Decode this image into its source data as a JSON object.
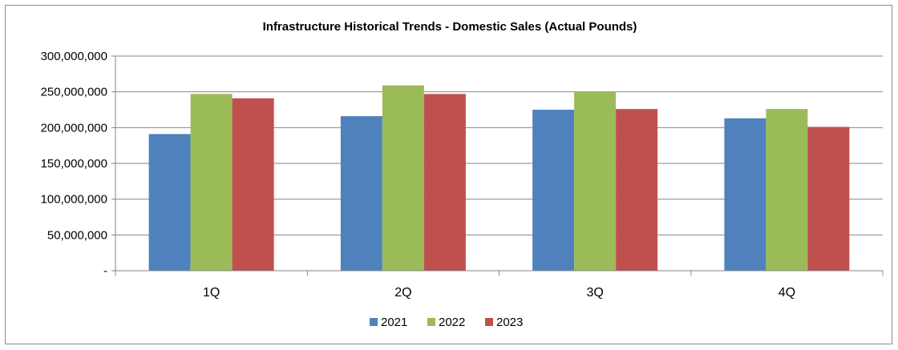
{
  "chart_data": {
    "type": "bar",
    "title": "Infrastructure Historical Trends - Domestic Sales (Actual Pounds)",
    "categories": [
      "1Q",
      "2Q",
      "3Q",
      "4Q"
    ],
    "series": [
      {
        "name": "2021",
        "color": "#4f81bd",
        "values": [
          191000000,
          216000000,
          225000000,
          213000000
        ]
      },
      {
        "name": "2022",
        "color": "#9bbb59",
        "values": [
          247000000,
          259000000,
          250000000,
          226000000
        ]
      },
      {
        "name": "2023",
        "color": "#c0504d",
        "values": [
          241000000,
          247000000,
          226000000,
          201000000
        ]
      }
    ],
    "ylim": [
      0,
      300000000
    ],
    "y_ticks": [
      {
        "value": 0,
        "label": "-"
      },
      {
        "value": 50000000,
        "label": "50,000,000"
      },
      {
        "value": 100000000,
        "label": "100,000,000"
      },
      {
        "value": 150000000,
        "label": "150,000,000"
      },
      {
        "value": 200000000,
        "label": "200,000,000"
      },
      {
        "value": 250000000,
        "label": "250,000,000"
      },
      {
        "value": 300000000,
        "label": "300,000,000"
      }
    ],
    "grid": true,
    "gridline_color": "#868686",
    "legend_position": "bottom"
  }
}
